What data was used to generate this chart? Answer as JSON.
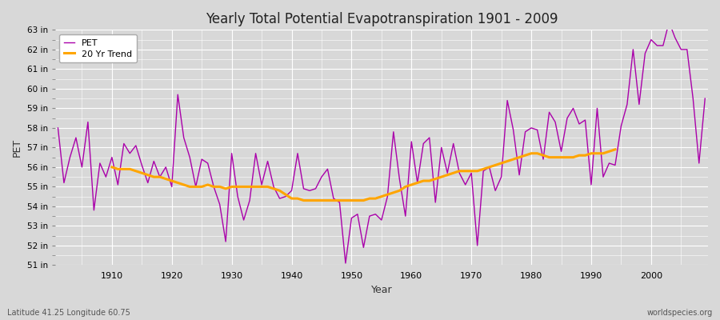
{
  "title": "Yearly Total Potential Evapotranspiration 1901 - 2009",
  "xlabel": "Year",
  "ylabel": "PET",
  "footnote_left": "Latitude 41.25 Longitude 60.75",
  "footnote_right": "worldspecies.org",
  "pet_color": "#aa00aa",
  "trend_color": "#FFA500",
  "background_color": "#d8d8d8",
  "plot_bg_color": "#d8d8d8",
  "grid_color": "#ffffff",
  "ylim": [
    51,
    63
  ],
  "years": [
    1901,
    1902,
    1903,
    1904,
    1905,
    1906,
    1907,
    1908,
    1909,
    1910,
    1911,
    1912,
    1913,
    1914,
    1915,
    1916,
    1917,
    1918,
    1919,
    1920,
    1921,
    1922,
    1923,
    1924,
    1925,
    1926,
    1927,
    1928,
    1929,
    1930,
    1931,
    1932,
    1933,
    1934,
    1935,
    1936,
    1937,
    1938,
    1939,
    1940,
    1941,
    1942,
    1943,
    1944,
    1945,
    1946,
    1947,
    1948,
    1949,
    1950,
    1951,
    1952,
    1953,
    1954,
    1955,
    1956,
    1957,
    1958,
    1959,
    1960,
    1961,
    1962,
    1963,
    1964,
    1965,
    1966,
    1967,
    1968,
    1969,
    1970,
    1971,
    1972,
    1973,
    1974,
    1975,
    1976,
    1977,
    1978,
    1979,
    1980,
    1981,
    1982,
    1983,
    1984,
    1985,
    1986,
    1987,
    1988,
    1989,
    1990,
    1991,
    1992,
    1993,
    1994,
    1995,
    1996,
    1997,
    1998,
    1999,
    2000,
    2001,
    2002,
    2003,
    2004,
    2005,
    2006,
    2007,
    2008,
    2009
  ],
  "pet_values": [
    58.0,
    55.2,
    56.5,
    57.5,
    56.0,
    58.3,
    53.8,
    56.2,
    55.5,
    56.5,
    55.1,
    57.2,
    56.7,
    57.1,
    56.1,
    55.2,
    56.3,
    55.5,
    56.0,
    55.0,
    59.7,
    57.5,
    56.5,
    55.0,
    56.4,
    56.2,
    55.0,
    54.1,
    52.2,
    56.7,
    54.5,
    53.3,
    54.3,
    56.7,
    55.1,
    56.3,
    55.0,
    54.4,
    54.5,
    54.8,
    56.7,
    54.9,
    54.8,
    54.9,
    55.5,
    55.9,
    54.4,
    54.2,
    51.1,
    53.4,
    53.6,
    51.9,
    53.5,
    53.6,
    53.3,
    54.5,
    57.8,
    55.4,
    53.5,
    57.3,
    55.2,
    57.2,
    57.5,
    54.2,
    57.0,
    55.7,
    57.2,
    55.7,
    55.1,
    55.7,
    52.0,
    55.8,
    56.0,
    54.8,
    55.5,
    59.4,
    57.9,
    55.6,
    57.8,
    58.0,
    57.9,
    56.4,
    58.8,
    58.3,
    56.8,
    58.5,
    59.0,
    58.2,
    58.4,
    55.1,
    59.0,
    55.5,
    56.2,
    56.1,
    58.1,
    59.2,
    62.0,
    59.2,
    61.8,
    62.5,
    62.2,
    62.2,
    63.4,
    62.6,
    62.0,
    62.0,
    59.5,
    56.2,
    59.5
  ],
  "trend_values": [
    null,
    null,
    null,
    null,
    null,
    null,
    null,
    null,
    null,
    56.0,
    55.9,
    55.9,
    55.9,
    55.8,
    55.7,
    55.6,
    55.5,
    55.5,
    55.4,
    55.3,
    55.2,
    55.1,
    55.0,
    55.0,
    55.0,
    55.1,
    55.0,
    55.0,
    54.9,
    55.0,
    55.0,
    55.0,
    55.0,
    55.0,
    55.0,
    55.0,
    54.9,
    54.8,
    54.6,
    54.4,
    54.4,
    54.3,
    54.3,
    54.3,
    54.3,
    54.3,
    54.3,
    54.3,
    54.3,
    54.3,
    54.3,
    54.3,
    54.4,
    54.4,
    54.5,
    54.6,
    54.7,
    54.8,
    55.0,
    55.1,
    55.2,
    55.3,
    55.3,
    55.4,
    55.5,
    55.6,
    55.7,
    55.8,
    55.8,
    55.8,
    55.8,
    55.9,
    56.0,
    56.1,
    56.2,
    56.3,
    56.4,
    56.5,
    56.6,
    56.7,
    56.7,
    56.6,
    56.5,
    56.5,
    56.5,
    56.5,
    56.5,
    56.6,
    56.6,
    56.7,
    56.7,
    56.7,
    56.8,
    56.9,
    null,
    null,
    null,
    null,
    null,
    null,
    null,
    null,
    null,
    null,
    null,
    null,
    null,
    null
  ],
  "xtick_years": [
    1910,
    1920,
    1930,
    1940,
    1950,
    1960,
    1970,
    1980,
    1990,
    2000
  ],
  "ytick_vals": [
    51,
    52,
    53,
    54,
    55,
    56,
    57,
    58,
    59,
    60,
    61,
    62,
    63
  ]
}
